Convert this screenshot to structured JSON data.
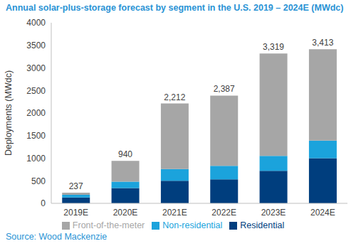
{
  "chart_data": {
    "type": "bar",
    "title": "Annual solar-plus-storage forecast by segment in the U.S. 2019 – 2024E (MWdc)",
    "y_label": "Deployments (MWdc)",
    "source": "Source: Wood Mackenzie",
    "categories": [
      "2019E",
      "2020E",
      "2021E",
      "2022E",
      "2023E",
      "2024E"
    ],
    "series": [
      {
        "name": "Residential",
        "color": "#003e7e",
        "values": [
          130,
          340,
          500,
          530,
          720,
          1000
        ]
      },
      {
        "name": "Non-residential",
        "color": "#1ba3dc",
        "values": [
          60,
          140,
          260,
          300,
          330,
          390
        ]
      },
      {
        "name": "Front-of-the-meter",
        "color": "#a6a6a6",
        "values": [
          47,
          460,
          1452,
          1557,
          2269,
          2023
        ]
      }
    ],
    "totals": [
      237,
      940,
      2212,
      2387,
      3319,
      3413
    ],
    "total_labels": [
      "237",
      "940",
      "2,212",
      "2,387",
      "3,319",
      "3,413"
    ],
    "ylim": [
      0,
      4000
    ],
    "yticks": [
      0,
      500,
      1000,
      1500,
      2000,
      2500,
      3000,
      3500,
      4000
    ],
    "stacked": true,
    "grid": false,
    "legend": "bottom"
  }
}
